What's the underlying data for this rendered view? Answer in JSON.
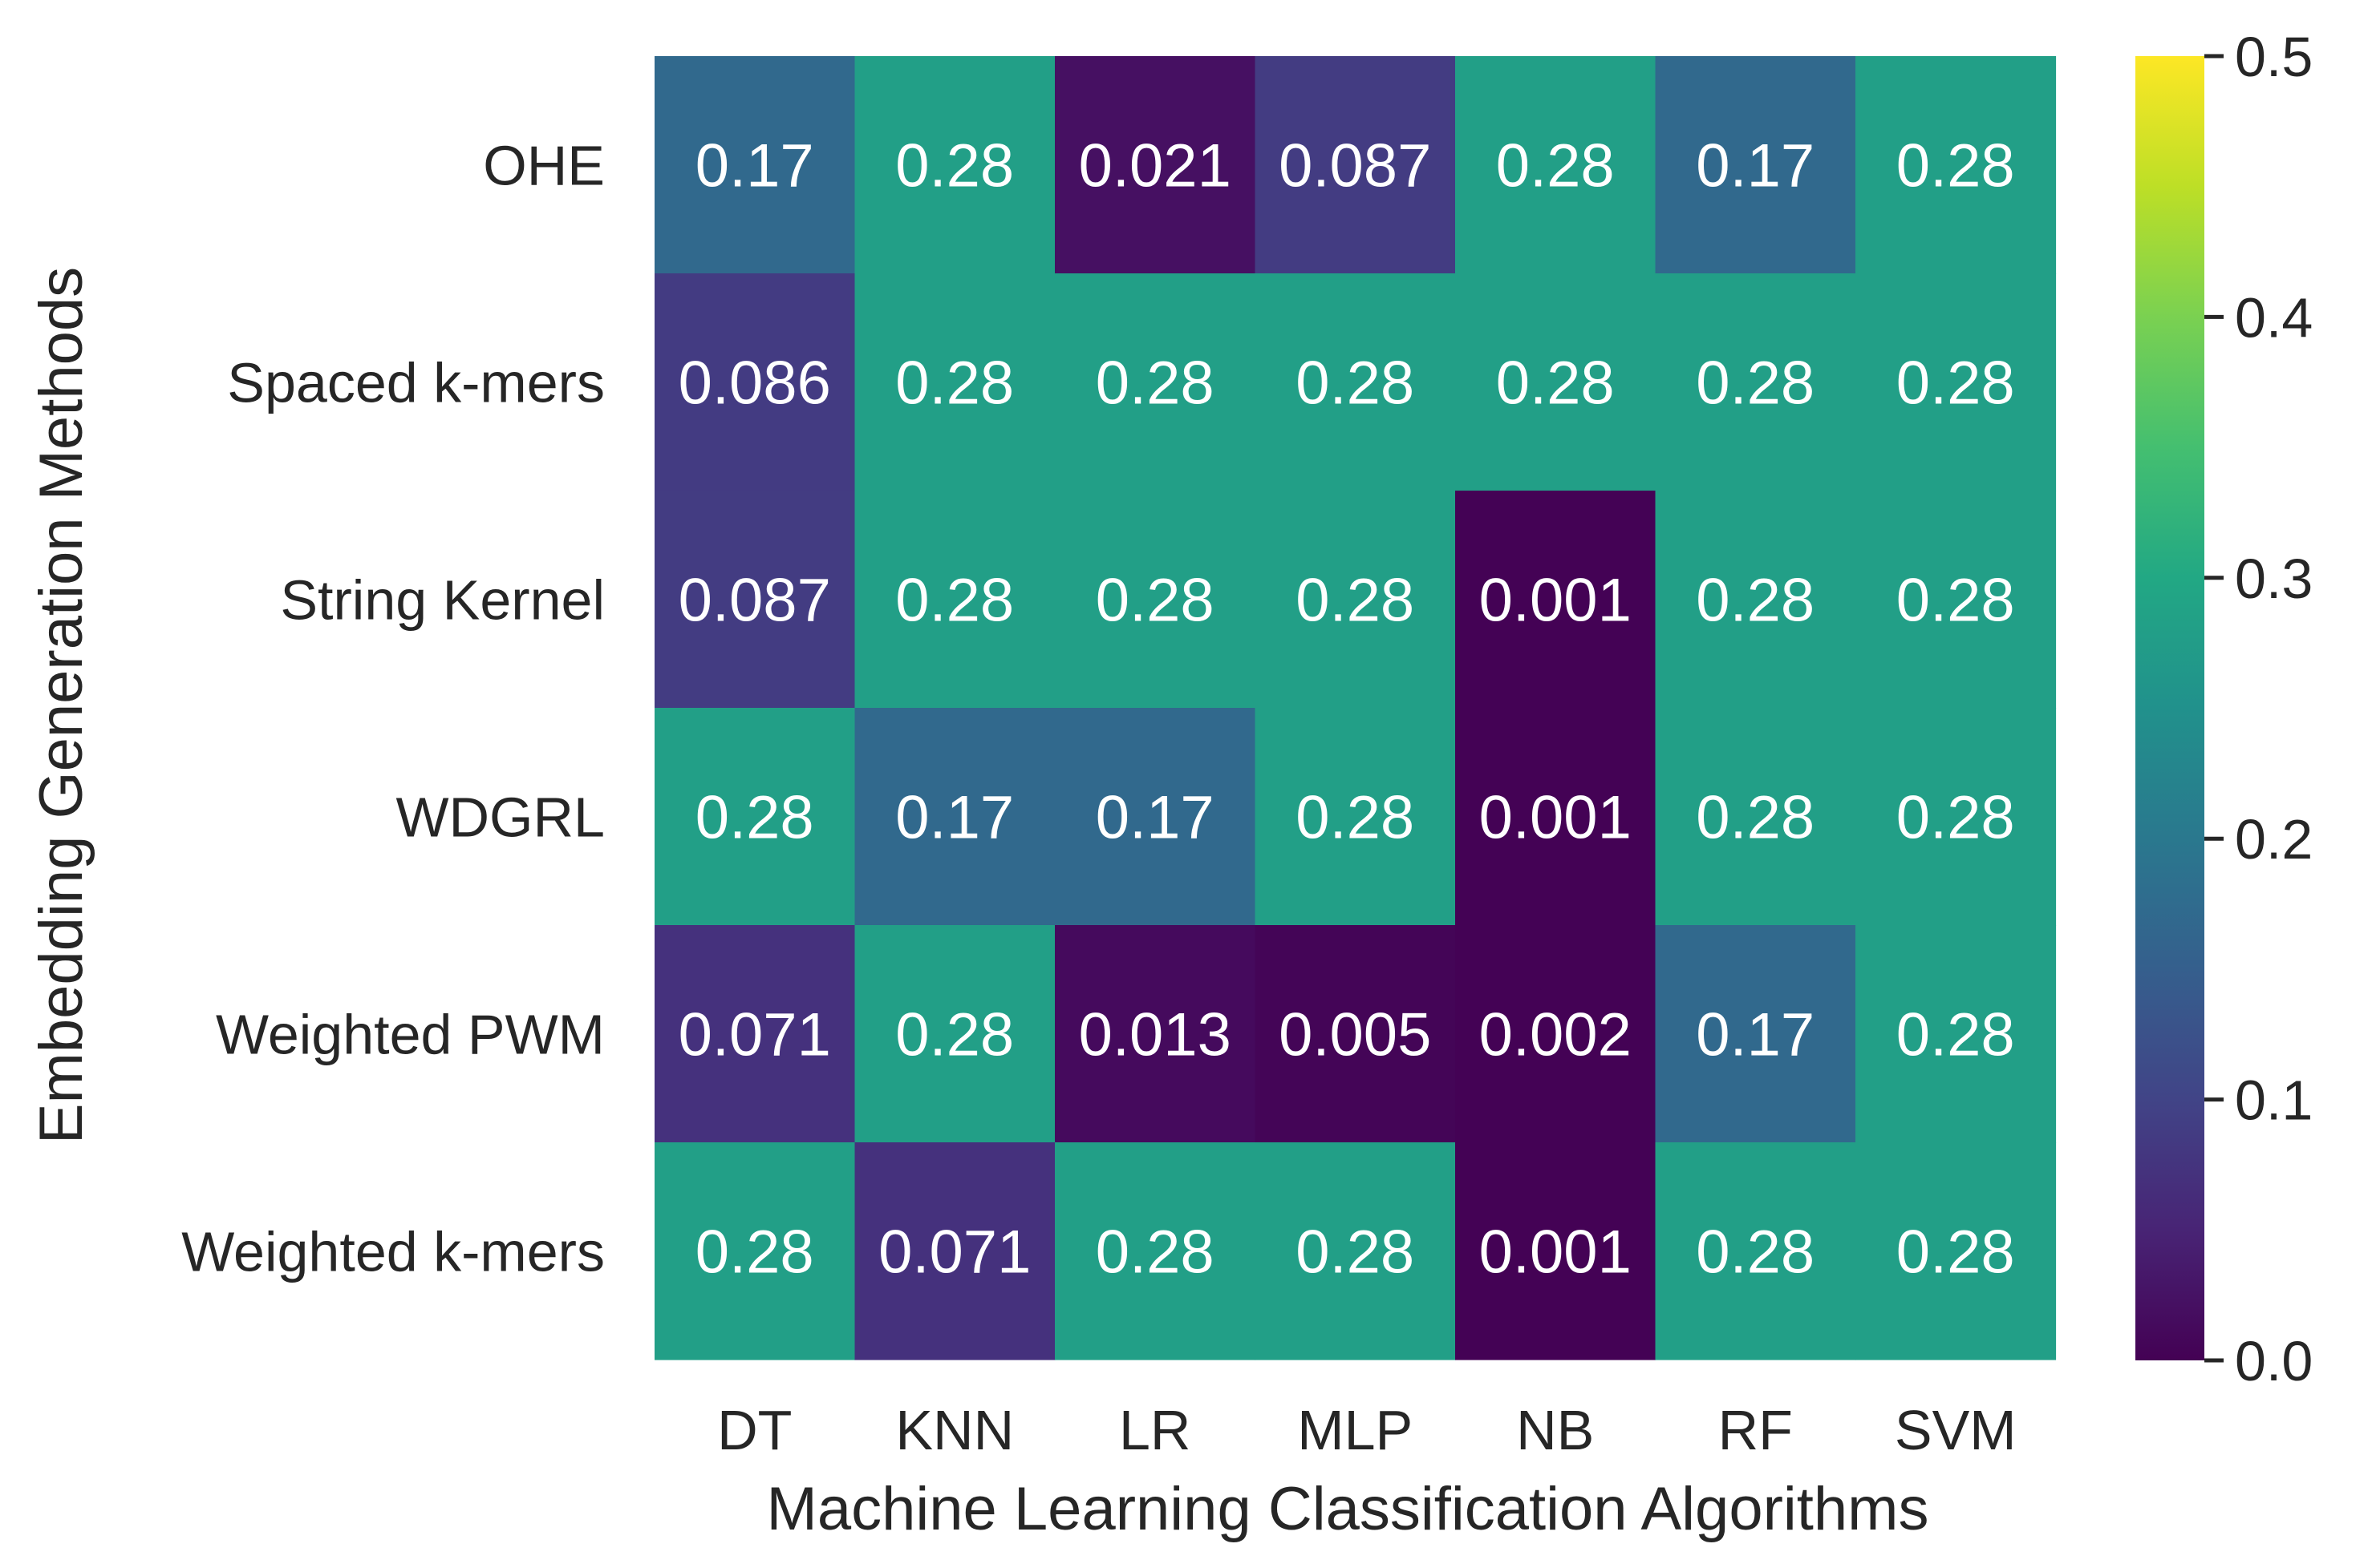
{
  "chart_data": {
    "type": "heatmap",
    "title": "",
    "xlabel": "Machine Learning Classification Algorithms",
    "ylabel": "Embedding Generation Methods",
    "x_categories": [
      "DT",
      "KNN",
      "LR",
      "MLP",
      "NB",
      "RF",
      "SVM"
    ],
    "y_categories": [
      "OHE",
      "Spaced k-mers",
      "String Kernel",
      "WDGRL",
      "Weighted PWM",
      "Weighted k-mers"
    ],
    "values": [
      [
        0.17,
        0.28,
        0.021,
        0.087,
        0.28,
        0.17,
        0.28
      ],
      [
        0.086,
        0.28,
        0.28,
        0.28,
        0.28,
        0.28,
        0.28
      ],
      [
        0.087,
        0.28,
        0.28,
        0.28,
        0.001,
        0.28,
        0.28
      ],
      [
        0.28,
        0.17,
        0.17,
        0.28,
        0.001,
        0.28,
        0.28
      ],
      [
        0.071,
        0.28,
        0.013,
        0.005,
        0.002,
        0.17,
        0.28
      ],
      [
        0.28,
        0.071,
        0.28,
        0.28,
        0.001,
        0.28,
        0.28
      ]
    ],
    "cell_labels": [
      [
        "0.17",
        "0.28",
        "0.021",
        "0.087",
        "0.28",
        "0.17",
        "0.28"
      ],
      [
        "0.086",
        "0.28",
        "0.28",
        "0.28",
        "0.28",
        "0.28",
        "0.28"
      ],
      [
        "0.087",
        "0.28",
        "0.28",
        "0.28",
        "0.001",
        "0.28",
        "0.28"
      ],
      [
        "0.28",
        "0.17",
        "0.17",
        "0.28",
        "0.001",
        "0.28",
        "0.28"
      ],
      [
        "0.071",
        "0.28",
        "0.013",
        "0.005",
        "0.002",
        "0.17",
        "0.28"
      ],
      [
        "0.28",
        "0.071",
        "0.28",
        "0.28",
        "0.001",
        "0.28",
        "0.28"
      ]
    ],
    "colorbar": {
      "colormap": "viridis",
      "vmin": 0.0,
      "vmax": 0.5,
      "ticks": [
        0.0,
        0.1,
        0.2,
        0.3,
        0.4,
        0.5
      ],
      "tick_labels": [
        "0.0",
        "0.1",
        "0.2",
        "0.3",
        "0.4",
        "0.5"
      ]
    },
    "annotation_color": "#ffffff"
  }
}
